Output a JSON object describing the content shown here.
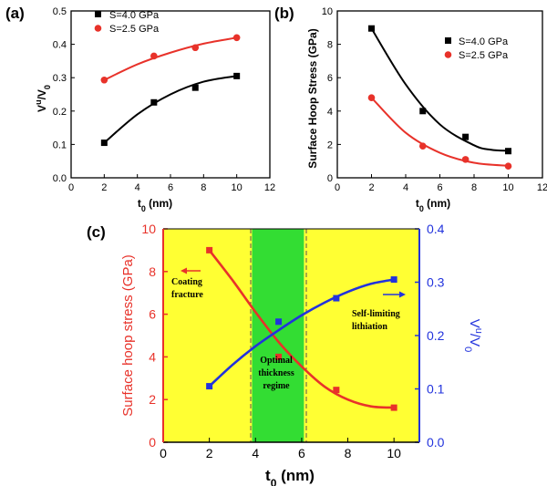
{
  "chart_data": [
    {
      "panel": "(a)",
      "type": "scatter",
      "ylabel": "V",
      "ylabel_sup": "u",
      "ylabel_tail": "/V",
      "ylabel_sub": "0",
      "xlabel": "t",
      "xlabel_sub": "0",
      "xlabel_unit": " (nm)",
      "xlim": [
        0,
        12
      ],
      "ylim": [
        0,
        0.5
      ],
      "xticks": [
        "0",
        "2",
        "4",
        "6",
        "8",
        "10",
        "12"
      ],
      "yticks": [
        "0.0",
        "0.1",
        "0.2",
        "0.3",
        "0.4",
        "0.5"
      ],
      "legend_position": "top-left",
      "series": [
        {
          "name": "S=4.0 GPa",
          "color": "#000000",
          "marker": "square",
          "x": [
            2,
            5,
            7.5,
            10
          ],
          "y": [
            0.105,
            0.226,
            0.27,
            0.305
          ],
          "fit": [
            [
              2,
              0.105
            ],
            [
              4,
              0.19
            ],
            [
              6,
              0.25
            ],
            [
              8,
              0.288
            ],
            [
              10,
              0.305
            ]
          ]
        },
        {
          "name": "S=2.5 GPa",
          "color": "#e8322a",
          "marker": "circle",
          "x": [
            2,
            5,
            7.5,
            10
          ],
          "y": [
            0.293,
            0.365,
            0.39,
            0.42
          ],
          "fit": [
            [
              2,
              0.293
            ],
            [
              4,
              0.34
            ],
            [
              6,
              0.375
            ],
            [
              8,
              0.402
            ],
            [
              10,
              0.42
            ]
          ]
        }
      ]
    },
    {
      "panel": "(b)",
      "type": "scatter",
      "ylabel": "Surface Hoop Stress (GPa)",
      "xlabel": "t",
      "xlabel_sub": "0",
      "xlabel_unit": " (nm)",
      "xlim": [
        0,
        12
      ],
      "ylim": [
        0,
        10
      ],
      "xticks": [
        "0",
        "2",
        "4",
        "6",
        "8",
        "10",
        "12"
      ],
      "yticks": [
        "0",
        "2",
        "4",
        "6",
        "8",
        "10"
      ],
      "legend_position": "top-right",
      "series": [
        {
          "name": "S=4.0 GPa",
          "color": "#000000",
          "marker": "square",
          "x": [
            2,
            5,
            7.5,
            10
          ],
          "y": [
            8.95,
            4.0,
            2.45,
            1.6
          ],
          "fit": [
            [
              2,
              8.95
            ],
            [
              4,
              5.6
            ],
            [
              6,
              3.2
            ],
            [
              8,
              1.95
            ],
            [
              9,
              1.68
            ],
            [
              10,
              1.62
            ]
          ]
        },
        {
          "name": "S=2.5 GPa",
          "color": "#e8322a",
          "marker": "circle",
          "x": [
            2,
            5,
            7.5,
            10
          ],
          "y": [
            4.8,
            1.9,
            1.1,
            0.7
          ],
          "fit": [
            [
              2,
              4.8
            ],
            [
              4,
              2.7
            ],
            [
              6,
              1.5
            ],
            [
              8,
              0.9
            ],
            [
              10,
              0.72
            ]
          ]
        }
      ]
    },
    {
      "panel": "(c)",
      "type": "line",
      "ylabel_left": "Surface hoop stress (GPa)",
      "ylabel_right": "V",
      "ylabel_right_sup": "u",
      "ylabel_right_tail": "/V",
      "ylabel_right_sub": "0",
      "xlabel": "t",
      "xlabel_sub": "0",
      "xlabel_unit": " (nm)",
      "xlim": [
        0,
        11.1
      ],
      "ylim_left": [
        0,
        10
      ],
      "ylim_right": [
        0,
        0.4
      ],
      "xticks": [
        "0",
        "2",
        "4",
        "6",
        "8",
        "10"
      ],
      "yticks_left": [
        "0",
        "2",
        "4",
        "6",
        "8",
        "10"
      ],
      "yticks_right": [
        "0.0",
        "0.1",
        "0.2",
        "0.3",
        "0.4"
      ],
      "regions": [
        {
          "from": 0,
          "to": 3.85,
          "color": "#ffff33"
        },
        {
          "from": 3.85,
          "to": 6.1,
          "color": "#33dd33"
        },
        {
          "from": 6.1,
          "to": 11.1,
          "color": "#ffff33"
        }
      ],
      "series": [
        {
          "color": "#e8322a",
          "axis": "left",
          "x": [
            2,
            5,
            7.5,
            10
          ],
          "y": [
            9.0,
            4.0,
            2.45,
            1.62
          ],
          "fit": [
            [
              2,
              9.0
            ],
            [
              3,
              7.6
            ],
            [
              4,
              6.1
            ],
            [
              5,
              4.7
            ],
            [
              6,
              3.55
            ],
            [
              7,
              2.6
            ],
            [
              8,
              2.0
            ],
            [
              9,
              1.68
            ],
            [
              10,
              1.62
            ]
          ]
        },
        {
          "color": "#2233dd",
          "axis": "right",
          "x": [
            2,
            5,
            7.5,
            10
          ],
          "y": [
            0.105,
            0.226,
            0.27,
            0.305
          ],
          "fit": [
            [
              2,
              0.105
            ],
            [
              3,
              0.145
            ],
            [
              4,
              0.18
            ],
            [
              5,
              0.21
            ],
            [
              6,
              0.238
            ],
            [
              7,
              0.262
            ],
            [
              8,
              0.282
            ],
            [
              9,
              0.297
            ],
            [
              10,
              0.305
            ]
          ]
        }
      ],
      "annotations": {
        "coating_fracture_1": "Coating",
        "coating_fracture_2": "fracture",
        "optimal_1": "Optimal",
        "optimal_2": "thickness",
        "optimal_3": "regime",
        "self_limiting_1": "Self-limiting",
        "self_limiting_2": "lithiation"
      }
    }
  ]
}
